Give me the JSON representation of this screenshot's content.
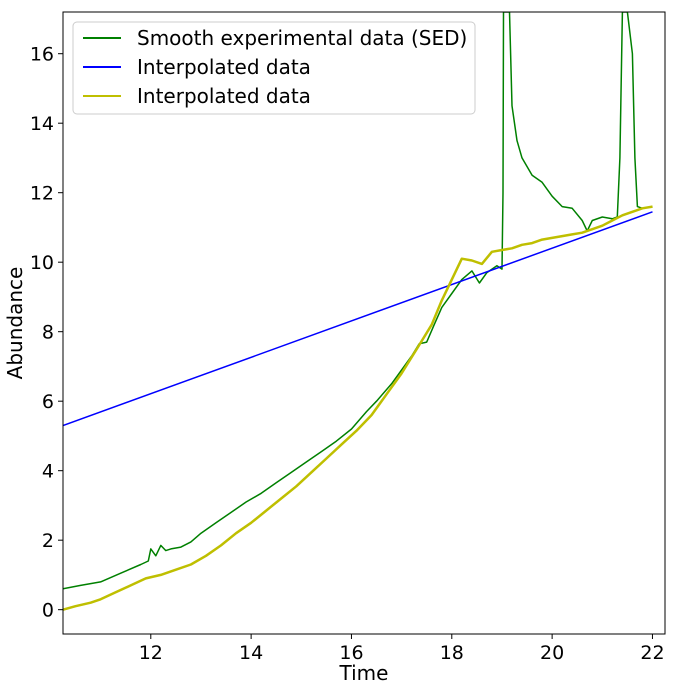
{
  "chart_data": {
    "type": "line",
    "title": "",
    "xlabel": "Time",
    "ylabel": "Abundance",
    "xlim": [
      10.25,
      22.25
    ],
    "ylim": [
      -0.7,
      17.2
    ],
    "xticks": [
      12,
      14,
      16,
      18,
      20,
      22
    ],
    "yticks": [
      0,
      2,
      4,
      6,
      8,
      10,
      12,
      14,
      16
    ],
    "legend_position": "upper-left",
    "grid": false,
    "series": [
      {
        "name": "Smooth experimental data (SED)",
        "color": "#008000",
        "x": [
          10.25,
          10.6,
          11.0,
          11.4,
          11.8,
          11.95,
          12.0,
          12.1,
          12.2,
          12.3,
          12.4,
          12.6,
          12.8,
          13.0,
          13.3,
          13.6,
          13.9,
          14.2,
          14.5,
          14.8,
          15.1,
          15.4,
          15.7,
          16.0,
          16.3,
          16.5,
          16.8,
          17.0,
          17.2,
          17.35,
          17.5,
          17.65,
          17.8,
          18.0,
          18.2,
          18.4,
          18.55,
          18.7,
          18.9,
          19.0,
          19.02,
          19.03,
          19.05,
          19.15,
          19.2,
          19.3,
          19.4,
          19.6,
          19.8,
          20.0,
          20.2,
          20.4,
          20.6,
          20.7,
          20.8,
          21.0,
          21.2,
          21.3,
          21.35,
          21.4,
          21.45,
          21.5,
          21.6,
          21.65,
          21.7,
          21.8,
          22.0
        ],
        "y": [
          0.6,
          0.7,
          0.8,
          1.05,
          1.3,
          1.4,
          1.75,
          1.55,
          1.85,
          1.7,
          1.75,
          1.8,
          1.95,
          2.2,
          2.5,
          2.8,
          3.1,
          3.35,
          3.65,
          3.95,
          4.25,
          4.55,
          4.85,
          5.2,
          5.7,
          6.0,
          6.5,
          6.9,
          7.3,
          7.65,
          7.7,
          8.2,
          8.7,
          9.1,
          9.5,
          9.75,
          9.4,
          9.7,
          9.9,
          9.8,
          12,
          17.2,
          17.2,
          17.2,
          14.5,
          13.5,
          13.0,
          12.5,
          12.3,
          11.9,
          11.6,
          11.55,
          11.2,
          10.9,
          11.2,
          11.3,
          11.25,
          11.3,
          13,
          17.2,
          17.2,
          17.2,
          16,
          13,
          11.6,
          11.55,
          11.6
        ]
      },
      {
        "name": "Interpolated data",
        "color": "#0000ff",
        "x": [
          10.25,
          22.0
        ],
        "y": [
          5.3,
          11.45
        ]
      },
      {
        "name": "Interpolated data",
        "color": "#bfbf00",
        "x": [
          10.25,
          10.5,
          10.8,
          11.0,
          11.3,
          11.6,
          11.9,
          12.2,
          12.5,
          12.8,
          13.1,
          13.4,
          13.7,
          14.0,
          14.3,
          14.6,
          14.9,
          15.2,
          15.5,
          15.8,
          16.1,
          16.4,
          16.7,
          17.0,
          17.3,
          17.6,
          17.8,
          18.0,
          18.2,
          18.4,
          18.6,
          18.8,
          19.0,
          19.2,
          19.4,
          19.6,
          19.8,
          20.0,
          20.2,
          20.4,
          20.6,
          20.7,
          20.8,
          21.0,
          21.2,
          21.4,
          21.6,
          21.8,
          22.0
        ],
        "y": [
          0.0,
          0.1,
          0.2,
          0.3,
          0.5,
          0.7,
          0.9,
          1.0,
          1.15,
          1.3,
          1.55,
          1.85,
          2.2,
          2.5,
          2.85,
          3.2,
          3.55,
          3.95,
          4.35,
          4.75,
          5.15,
          5.6,
          6.2,
          6.8,
          7.5,
          8.2,
          8.9,
          9.5,
          10.1,
          10.05,
          9.95,
          10.3,
          10.35,
          10.4,
          10.5,
          10.55,
          10.65,
          10.7,
          10.75,
          10.8,
          10.85,
          10.9,
          10.95,
          11.05,
          11.2,
          11.35,
          11.45,
          11.55,
          11.6
        ]
      }
    ]
  }
}
